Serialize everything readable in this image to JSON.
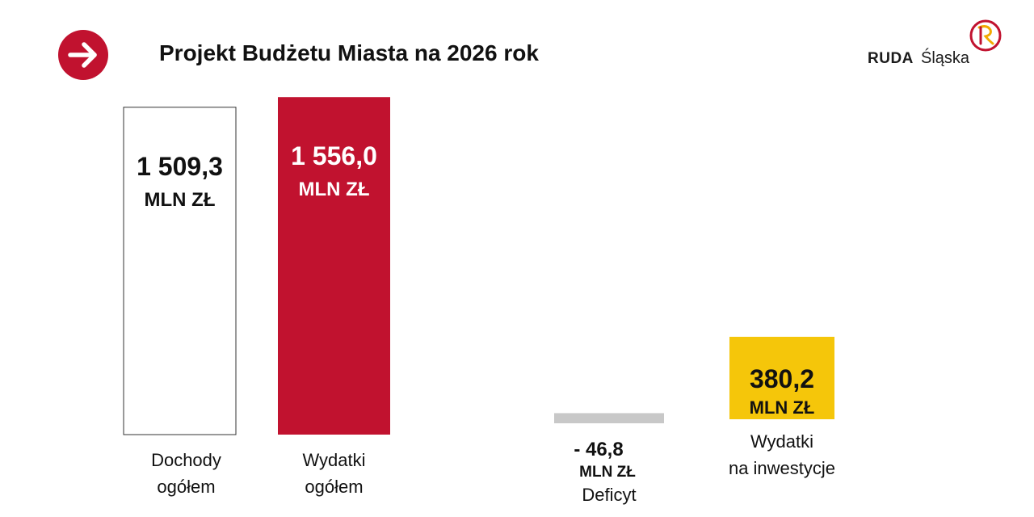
{
  "header": {
    "title": "Projekt Budżetu Miasta na 2026 rok",
    "nav_icon": "arrow-right-icon",
    "accent_color": "#c1122f"
  },
  "logo": {
    "word_bold": "RUDA",
    "word_light": "Śląska",
    "mark_letter": "R",
    "mark_colors": [
      "#c1122f",
      "#f2a900"
    ]
  },
  "chart_data": {
    "type": "bar",
    "unit": "MLN ZŁ",
    "categories": [
      [
        "Dochody",
        "ogółem"
      ],
      [
        "Wydatki",
        "ogółem"
      ],
      [
        "Deficyt"
      ],
      [
        "Wydatki",
        "na inwestycje"
      ]
    ],
    "values": [
      1509.3,
      1556.0,
      -46.8,
      380.2
    ],
    "value_labels": [
      "1 509,3",
      "1 556,0",
      "- 46,8",
      "380,2"
    ],
    "colors": [
      "#ffffff",
      "#c1122f",
      "#c8c8c8",
      "#f5c60a"
    ],
    "value_text_colors": [
      "#111111",
      "#ffffff",
      "#111111",
      "#111111"
    ],
    "grid": false,
    "legend": "none"
  }
}
